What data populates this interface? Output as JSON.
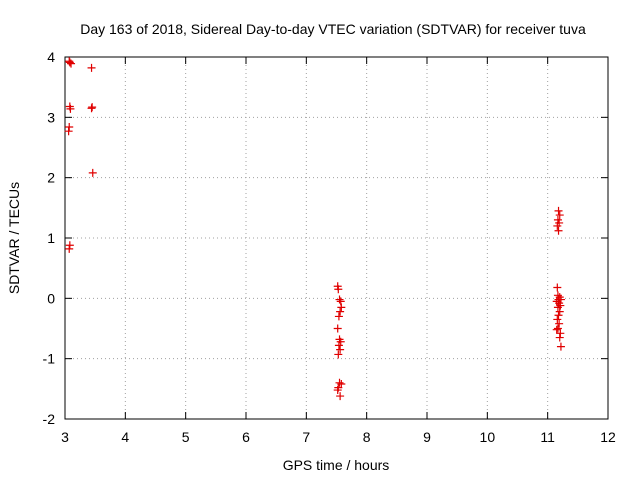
{
  "chart_data": {
    "type": "scatter",
    "title": "Day 163 of 2018, Sidereal Day-to-day VTEC variation (SDTVAR) for receiver tuva",
    "xlabel": "GPS time / hours",
    "ylabel": "SDTVAR / TECUs",
    "xlim": [
      3,
      12
    ],
    "ylim": [
      -2,
      4
    ],
    "xticks": [
      "3",
      "4",
      "5",
      "6",
      "7",
      "8",
      "9",
      "10",
      "11",
      "12"
    ],
    "yticks": [
      "-2",
      "-1",
      "0",
      "1",
      "2",
      "3",
      "4"
    ],
    "grid": true,
    "marker": "+",
    "series": [
      {
        "name": "SDTVAR",
        "color": "#e00000",
        "points": [
          [
            3.07,
            3.93
          ],
          [
            3.08,
            3.91
          ],
          [
            3.1,
            3.89
          ],
          [
            3.08,
            3.18
          ],
          [
            3.09,
            3.14
          ],
          [
            3.07,
            2.84
          ],
          [
            3.06,
            2.77
          ],
          [
            3.08,
            0.88
          ],
          [
            3.07,
            0.82
          ],
          [
            3.44,
            3.82
          ],
          [
            3.45,
            3.17
          ],
          [
            3.44,
            3.15
          ],
          [
            3.46,
            2.08
          ],
          [
            7.52,
            0.2
          ],
          [
            7.53,
            0.15
          ],
          [
            7.55,
            -0.02
          ],
          [
            7.57,
            -0.05
          ],
          [
            7.58,
            -0.15
          ],
          [
            7.56,
            -0.22
          ],
          [
            7.54,
            -0.3
          ],
          [
            7.52,
            -0.5
          ],
          [
            7.55,
            -0.68
          ],
          [
            7.57,
            -0.72
          ],
          [
            7.54,
            -0.78
          ],
          [
            7.56,
            -0.85
          ],
          [
            7.53,
            -0.93
          ],
          [
            7.55,
            -1.4
          ],
          [
            7.58,
            -1.42
          ],
          [
            7.53,
            -1.48
          ],
          [
            7.52,
            -1.52
          ],
          [
            7.56,
            -1.62
          ],
          [
            11.18,
            1.45
          ],
          [
            11.2,
            1.38
          ],
          [
            11.17,
            1.3
          ],
          [
            11.19,
            1.25
          ],
          [
            11.16,
            1.2
          ],
          [
            11.18,
            1.12
          ],
          [
            11.16,
            0.18
          ],
          [
            11.17,
            0.05
          ],
          [
            11.2,
            0.02
          ],
          [
            11.18,
            -0.02
          ],
          [
            11.22,
            -0.02
          ],
          [
            11.15,
            -0.05
          ],
          [
            11.19,
            -0.08
          ],
          [
            11.21,
            -0.12
          ],
          [
            11.17,
            -0.15
          ],
          [
            11.2,
            -0.22
          ],
          [
            11.18,
            -0.28
          ],
          [
            11.16,
            -0.35
          ],
          [
            11.19,
            -0.42
          ],
          [
            11.17,
            -0.5
          ],
          [
            11.15,
            -0.52
          ],
          [
            11.21,
            -0.58
          ],
          [
            11.2,
            -0.65
          ],
          [
            11.22,
            -0.8
          ]
        ]
      }
    ]
  }
}
